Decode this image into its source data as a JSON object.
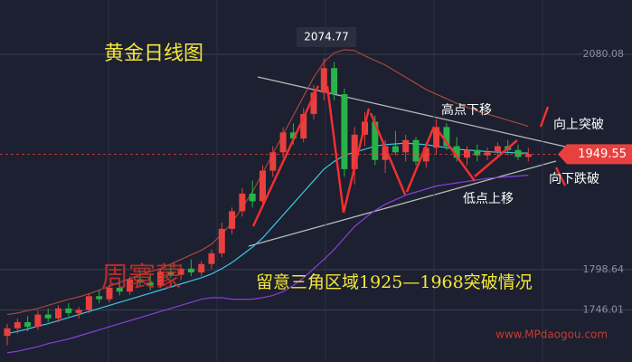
{
  "chart_data": {
    "type": "candlestick",
    "title": "黄金日线图",
    "open": [
      1712,
      1722,
      1730,
      1724,
      1740,
      1735,
      1748,
      1742,
      1746,
      1764,
      1760,
      1775,
      1770,
      1786,
      1782,
      1778,
      1796,
      1792,
      1800,
      1795,
      1806,
      1820,
      1852,
      1875,
      1898,
      1888,
      1928,
      1952,
      1978,
      1970,
      2002,
      2030,
      2062,
      2028,
      1930,
      1975,
      1992,
      1942,
      1960,
      1952,
      1968,
      1940,
      1958,
      1985,
      1960,
      1945,
      1955,
      1948,
      1952,
      1960,
      1955,
      1946
    ],
    "high": [
      1728,
      1735,
      1738,
      1745,
      1748,
      1752,
      1755,
      1750,
      1768,
      1772,
      1778,
      1782,
      1790,
      1795,
      1792,
      1800,
      1804,
      1806,
      1812,
      1810,
      1825,
      1860,
      1880,
      1905,
      1915,
      1935,
      1960,
      1985,
      1990,
      2010,
      2040,
      2074.77,
      2070,
      2035,
      1985,
      2005,
      2000,
      1968,
      1980,
      1975,
      1972,
      1965,
      1995,
      1990,
      1972,
      1960,
      1962,
      1958,
      1965,
      1968,
      1962,
      1958
    ],
    "low": [
      1700,
      1715,
      1718,
      1720,
      1730,
      1730,
      1738,
      1735,
      1742,
      1755,
      1756,
      1765,
      1766,
      1778,
      1772,
      1775,
      1788,
      1785,
      1790,
      1790,
      1800,
      1815,
      1845,
      1868,
      1880,
      1885,
      1920,
      1945,
      1962,
      1965,
      1995,
      2020,
      2020,
      1920,
      1910,
      1960,
      1935,
      1925,
      1948,
      1940,
      1935,
      1932,
      1950,
      1955,
      1940,
      1935,
      1940,
      1942,
      1945,
      1948,
      1942,
      1940
    ],
    "close": [
      1722,
      1730,
      1724,
      1740,
      1735,
      1748,
      1742,
      1746,
      1764,
      1760,
      1775,
      1770,
      1786,
      1782,
      1778,
      1796,
      1792,
      1800,
      1795,
      1806,
      1820,
      1852,
      1875,
      1898,
      1888,
      1928,
      1952,
      1978,
      1970,
      2002,
      2030,
      2062,
      2028,
      1930,
      1975,
      1992,
      1942,
      1960,
      1952,
      1968,
      1940,
      1958,
      1985,
      1960,
      1945,
      1955,
      1948,
      1952,
      1960,
      1955,
      1946,
      1949.55
    ],
    "up_color": "#e8403f",
    "down_color": "#27b34a",
    "lines": [
      {
        "color": "#a8473a",
        "values": [
          1740,
          1742,
          1745,
          1748,
          1752,
          1756,
          1760,
          1763,
          1767,
          1772,
          1777,
          1782,
          1787,
          1792,
          1796,
          1800,
          1806,
          1812,
          1818,
          1824,
          1832,
          1845,
          1860,
          1880,
          1900,
          1925,
          1950,
          1975,
          2000,
          2025,
          2050,
          2070,
          2082,
          2086,
          2085,
          2078,
          2072,
          2066,
          2058,
          2050,
          2042,
          2034,
          2028,
          2022,
          2016,
          2011,
          2006,
          2002,
          1998,
          1994,
          1990,
          1986
        ]
      },
      {
        "color": "#8a3fd8",
        "values": [
          1690,
          1692,
          1695,
          1698,
          1702,
          1705,
          1708,
          1712,
          1716,
          1720,
          1724,
          1728,
          1732,
          1736,
          1740,
          1744,
          1748,
          1752,
          1756,
          1760,
          1762,
          1762,
          1760,
          1760,
          1760,
          1762,
          1765,
          1770,
          1778,
          1788,
          1800,
          1812,
          1825,
          1840,
          1855,
          1866,
          1876,
          1884,
          1890,
          1896,
          1900,
          1904,
          1908,
          1910,
          1912,
          1914,
          1916,
          1918,
          1919,
          1920,
          1921,
          1922
        ]
      },
      {
        "color": "#3fc6e6",
        "values": [
          1715,
          1718,
          1721,
          1725,
          1728,
          1732,
          1736,
          1740,
          1744,
          1748,
          1752,
          1756,
          1760,
          1764,
          1768,
          1772,
          1776,
          1780,
          1784,
          1788,
          1793,
          1800,
          1808,
          1818,
          1828,
          1840,
          1855,
          1870,
          1885,
          1900,
          1915,
          1930,
          1940,
          1948,
          1952,
          1956,
          1960,
          1962,
          1963,
          1964,
          1963,
          1962,
          1960,
          1958,
          1956,
          1955,
          1954,
          1953,
          1952,
          1952,
          1951,
          1951
        ]
      }
    ],
    "ylim": [
      1678,
      2151
    ],
    "yticks": [
      1746.01,
      1798.64,
      2080.08
    ],
    "grid": true,
    "notes": [
      "高点下移",
      "低点上移",
      "向上突破",
      "向下跌破",
      "留意三角区域1925—1968突破情况"
    ],
    "watermark": "周寰蒙",
    "site": "www.MPdaogou.com"
  }
}
